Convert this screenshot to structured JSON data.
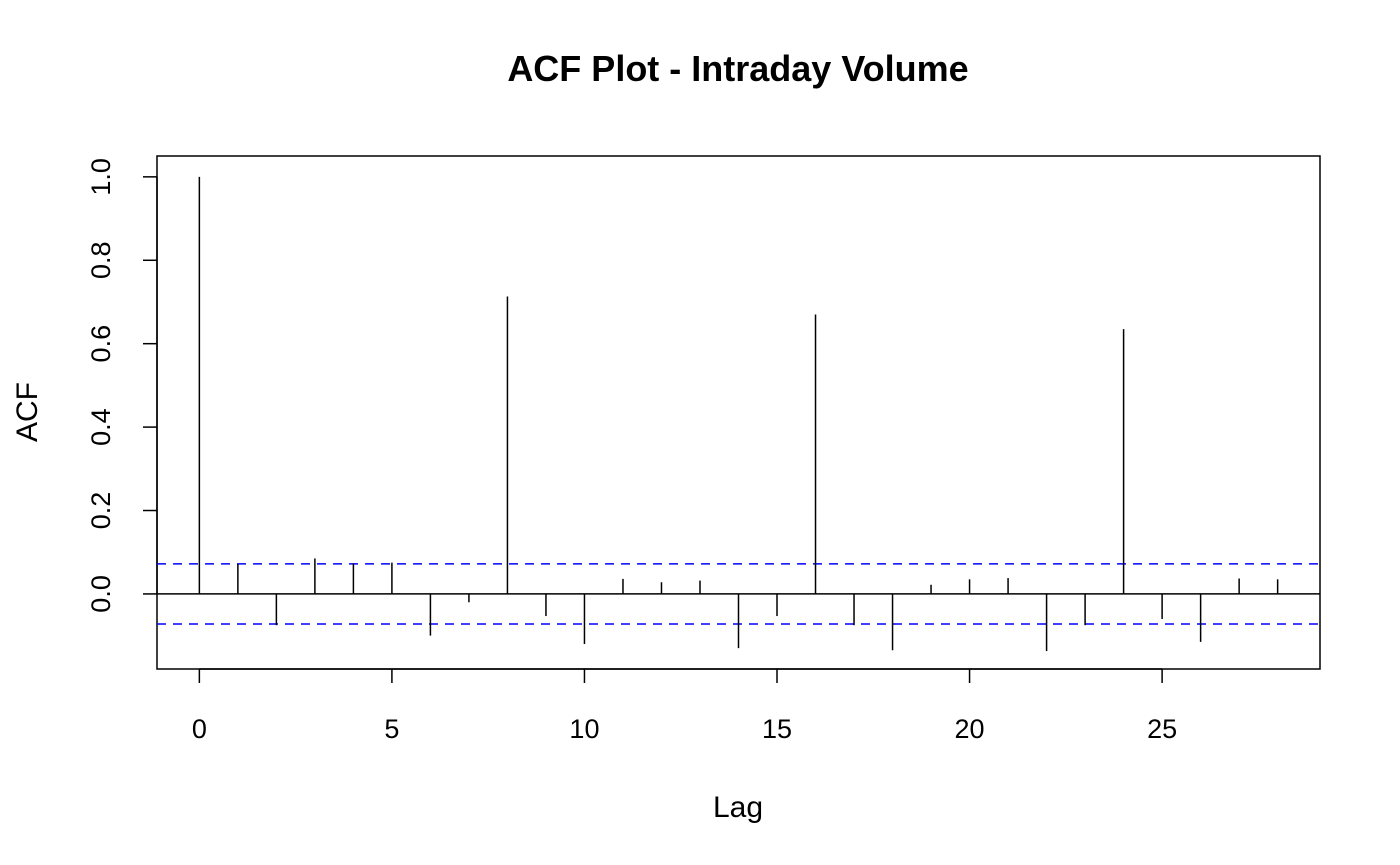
{
  "chart_data": {
    "type": "bar",
    "title": "ACF Plot - Intraday Volume",
    "xlabel": "Lag",
    "ylabel": "ACF",
    "xlim": [
      -1.1,
      29.1
    ],
    "ylim": [
      -0.18,
      1.05
    ],
    "x_ticks": [
      0,
      5,
      10,
      15,
      20,
      25
    ],
    "x_tick_labels": [
      "0",
      "5",
      "10",
      "15",
      "20",
      "25"
    ],
    "y_ticks": [
      0.0,
      0.2,
      0.4,
      0.6,
      0.8,
      1.0
    ],
    "y_tick_labels": [
      "0.0",
      "0.2",
      "0.4",
      "0.6",
      "0.8",
      "1.0"
    ],
    "lags": [
      0,
      1,
      2,
      3,
      4,
      5,
      6,
      7,
      8,
      9,
      10,
      11,
      12,
      13,
      14,
      15,
      16,
      17,
      18,
      19,
      20,
      21,
      22,
      23,
      24,
      25,
      26,
      27,
      28
    ],
    "acf": [
      1.0,
      0.072,
      -0.075,
      0.085,
      0.073,
      0.075,
      -0.1,
      -0.02,
      0.713,
      -0.053,
      -0.12,
      0.036,
      0.028,
      0.032,
      -0.13,
      -0.053,
      0.67,
      -0.075,
      -0.135,
      0.022,
      0.035,
      0.038,
      -0.137,
      -0.075,
      0.635,
      -0.06,
      -0.115,
      0.037,
      0.035
    ],
    "confidence_bound": 0.072,
    "colors": {
      "spikes": "#000000",
      "confidence": "#0000ff",
      "zero_line": "#000000"
    },
    "grid": false
  }
}
